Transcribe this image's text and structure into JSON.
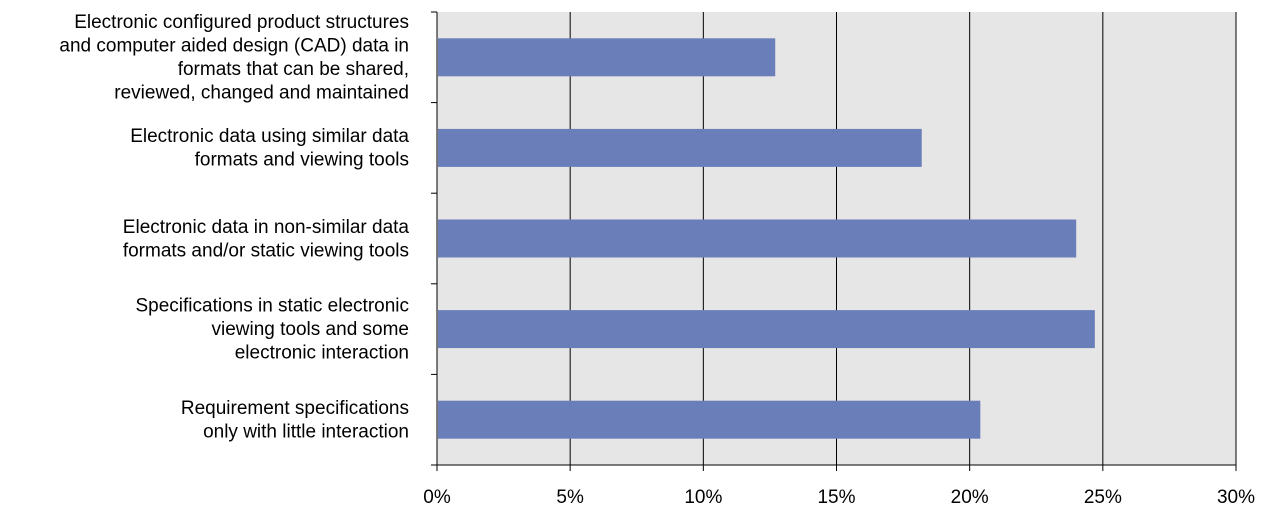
{
  "chart_data": {
    "type": "bar",
    "orientation": "horizontal",
    "categories": [
      [
        "Electronic configured product structures",
        "and computer aided design (CAD) data in",
        "formats that can be shared,",
        "reviewed, changed and maintained"
      ],
      [
        "Electronic data using similar data",
        "formats and viewing tools"
      ],
      [
        "Electronic data in non-similar data",
        "formats and/or static viewing tools"
      ],
      [
        "Specifications in static electronic",
        "viewing tools and some",
        "electronic interaction"
      ],
      [
        "Requirement specifications",
        "only with little interaction"
      ]
    ],
    "values": [
      12.7,
      18.2,
      24.0,
      24.7,
      20.4
    ],
    "xlim": [
      0,
      30
    ],
    "xticks": [
      0,
      5,
      10,
      15,
      20,
      25,
      30
    ],
    "tick_format": "percent",
    "title": "",
    "xlabel": "",
    "ylabel": "",
    "grid": "vertical",
    "colors": {
      "bar": "#6a7fba",
      "plot_background": "#e6e6e6",
      "grid": "#000000"
    }
  }
}
